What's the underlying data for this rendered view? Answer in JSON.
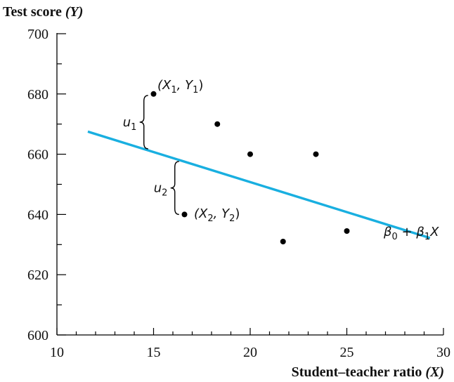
{
  "chart_data": {
    "type": "scatter",
    "xlabel": "Student–teacher ratio",
    "xlabel_var": "(X)",
    "ylabel": "Test score",
    "ylabel_var": "(Y)",
    "xlim": [
      10,
      30
    ],
    "ylim": [
      600,
      700
    ],
    "x_ticks": [
      10,
      15,
      20,
      25,
      30
    ],
    "y_ticks": [
      600,
      620,
      640,
      660,
      680,
      700
    ],
    "x_minor_step": 1,
    "y_minor_step": 10,
    "grid": false,
    "points": [
      {
        "x": 15.0,
        "y": 680
      },
      {
        "x": 18.3,
        "y": 670
      },
      {
        "x": 20.0,
        "y": 660
      },
      {
        "x": 23.4,
        "y": 660
      },
      {
        "x": 16.6,
        "y": 640
      },
      {
        "x": 21.7,
        "y": 631
      },
      {
        "x": 25.0,
        "y": 634.5
      }
    ],
    "regression_line": {
      "x_start": 11.6,
      "y_start": 667.5,
      "x_end": 29.3,
      "y_end": 632.2,
      "color": "#19afe0",
      "label_parts": [
        "β",
        "0",
        " + ",
        "β",
        "1",
        "X"
      ]
    },
    "annotations": [
      {
        "id": "p1",
        "text": "(X",
        "sub": "1",
        "mid": ", Y",
        "sub2": "1",
        "end": ")"
      },
      {
        "id": "p2",
        "text": "(X",
        "sub": "2",
        "mid": ", Y",
        "sub2": "2",
        "end": ")"
      }
    ],
    "residuals": [
      {
        "label": "u",
        "sub": "1",
        "x": 14.9,
        "y_top": 679.5,
        "y_bottom": 661.8
      },
      {
        "label": "u",
        "sub": "2",
        "x": 16.5,
        "y_top": 657.6,
        "y_bottom": 640
      }
    ]
  }
}
